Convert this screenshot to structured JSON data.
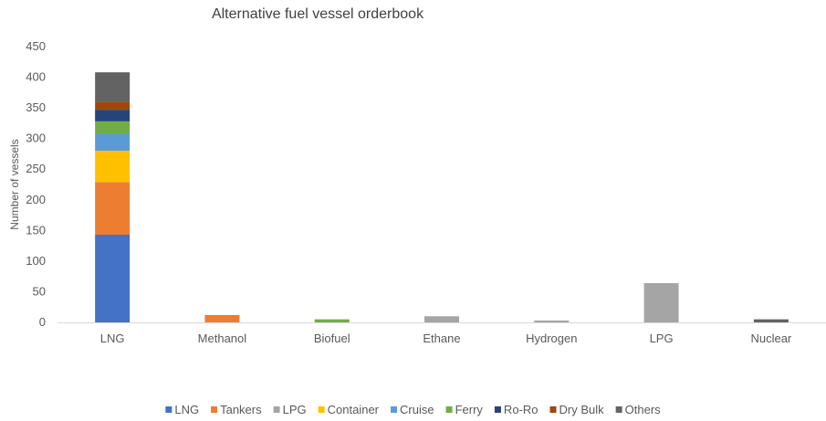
{
  "chart_data": {
    "type": "bar",
    "stacked": true,
    "title": "Alternative fuel vessel orderbook",
    "xlabel": "",
    "ylabel": "Number of vessels",
    "ylim": [
      0,
      450
    ],
    "yticks": [
      0,
      50,
      100,
      150,
      200,
      250,
      300,
      350,
      400,
      450
    ],
    "grid": false,
    "legend_position": "bottom",
    "categories": [
      "LNG",
      "Methanol",
      "Biofuel",
      "Ethane",
      "Hydrogen",
      "LPG",
      "Nuclear"
    ],
    "series": [
      {
        "name": "LNG",
        "color": "#4472C4",
        "values": [
          143,
          0,
          0,
          0,
          0,
          0,
          0
        ]
      },
      {
        "name": "Tankers",
        "color": "#ED7D31",
        "values": [
          86,
          12,
          0,
          0,
          0,
          0,
          0
        ]
      },
      {
        "name": "LPG",
        "color": "#A5A5A5",
        "values": [
          0,
          0,
          0,
          10,
          3,
          64,
          0
        ]
      },
      {
        "name": "Container",
        "color": "#FFC000",
        "values": [
          51,
          0,
          0,
          0,
          0,
          0,
          0
        ]
      },
      {
        "name": "Cruise",
        "color": "#5B9BD5",
        "values": [
          27,
          0,
          0,
          0,
          0,
          0,
          0
        ]
      },
      {
        "name": "Ferry",
        "color": "#70AD47",
        "values": [
          21,
          0,
          5,
          0,
          0,
          0,
          0
        ]
      },
      {
        "name": "Ro-Ro",
        "color": "#264478",
        "values": [
          19,
          0,
          0,
          0,
          0,
          0,
          0
        ]
      },
      {
        "name": "Dry Bulk",
        "color": "#9E480E",
        "values": [
          13,
          0,
          0,
          0,
          0,
          0,
          0
        ]
      },
      {
        "name": "Others",
        "color": "#636363",
        "values": [
          48,
          0,
          0,
          0,
          0,
          0,
          5
        ]
      }
    ]
  }
}
